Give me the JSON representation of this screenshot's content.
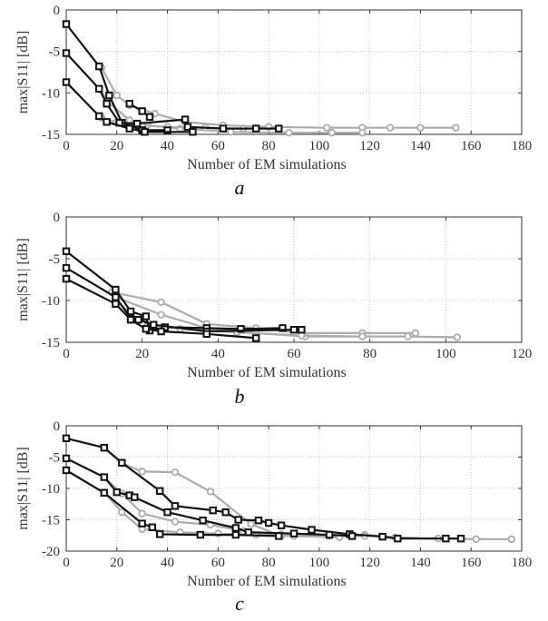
{
  "colors": {
    "black_series": "#111111",
    "gray_series": "#ababab",
    "axis": "#333333",
    "grid": "#c8c8c8"
  },
  "chart_data": [
    {
      "type": "line",
      "panel_label": "a",
      "xlabel": "Number of EM simulations",
      "ylabel": "max|S11| [dB]",
      "xlim": [
        0,
        180
      ],
      "ylim": [
        -15,
        0
      ],
      "xticks": [
        0,
        20,
        40,
        60,
        80,
        100,
        120,
        140,
        160,
        180
      ],
      "yticks": [
        0,
        -5,
        -10,
        -15
      ],
      "grid": true,
      "series": [
        {
          "color": "gray",
          "marker": "circle",
          "points": [
            [
              14,
              -7
            ],
            [
              20,
              -10.3
            ],
            [
              25,
              -11.5
            ],
            [
              35,
              -12.5
            ],
            [
              47,
              -13.5
            ],
            [
              62,
              -13.9
            ],
            [
              80,
              -14.1
            ],
            [
              103,
              -14.2
            ],
            [
              117,
              -14.2
            ],
            [
              128,
              -14.2
            ],
            [
              140,
              -14.2
            ],
            [
              154,
              -14.2
            ]
          ]
        },
        {
          "color": "gray",
          "marker": "circle",
          "points": [
            [
              13,
              -9.5
            ],
            [
              17,
              -11.2
            ],
            [
              25,
              -13.3
            ],
            [
              32,
              -13.9
            ],
            [
              45,
              -14.3
            ],
            [
              65,
              -14.7
            ],
            [
              88,
              -14.8
            ],
            [
              105,
              -14.8
            ],
            [
              117,
              -14.8
            ]
          ]
        },
        {
          "color": "gray",
          "marker": "circle",
          "points": [
            [
              14,
              -13
            ],
            [
              20,
              -13.5
            ],
            [
              30,
              -13.9
            ],
            [
              40,
              -14.1
            ],
            [
              55,
              -14.2
            ],
            [
              70,
              -14.3
            ]
          ]
        },
        {
          "color": "black",
          "marker": "square",
          "points": [
            [
              0,
              -1.7
            ],
            [
              13,
              -6.8
            ],
            [
              17,
              -10.3
            ],
            [
              22,
              -13.6
            ],
            [
              30,
              -14.5
            ],
            [
              40,
              -14.5
            ]
          ]
        },
        {
          "color": "black",
          "marker": "square",
          "points": [
            [
              0,
              -5.2
            ],
            [
              13,
              -9.5
            ],
            [
              16,
              -11.3
            ],
            [
              21,
              -13.6
            ],
            [
              28,
              -13.7
            ],
            [
              47,
              -13.2
            ],
            [
              48,
              -14.1
            ],
            [
              62,
              -14.3
            ],
            [
              75,
              -14.3
            ],
            [
              84,
              -14.3
            ]
          ]
        },
        {
          "color": "black",
          "marker": "square",
          "points": [
            [
              0,
              -8.7
            ],
            [
              13,
              -12.8
            ],
            [
              16,
              -13.5
            ],
            [
              25,
              -14.3
            ],
            [
              31,
              -14.7
            ],
            [
              50,
              -14.7
            ]
          ]
        },
        {
          "color": "black",
          "marker": "square",
          "points": [
            [
              25,
              -11.3
            ],
            [
              30,
              -12.2
            ],
            [
              33,
              -12.9
            ]
          ]
        }
      ]
    },
    {
      "type": "line",
      "panel_label": "b",
      "xlabel": "Number of EM simulations",
      "ylabel": "max|S11| [dB]",
      "xlim": [
        0,
        120
      ],
      "ylim": [
        -15,
        0
      ],
      "xticks": [
        0,
        20,
        40,
        60,
        80,
        100,
        120
      ],
      "yticks": [
        0,
        -5,
        -10,
        -15
      ],
      "grid": true,
      "series": [
        {
          "color": "gray",
          "marker": "circle",
          "points": [
            [
              12,
              -9
            ],
            [
              25,
              -10.2
            ],
            [
              37,
              -12.8
            ],
            [
              50,
              -13.3
            ],
            [
              62,
              -13.9
            ],
            [
              78,
              -13.9
            ],
            [
              92,
              -13.9
            ]
          ]
        },
        {
          "color": "gray",
          "marker": "circle",
          "points": [
            [
              13,
              -9.6
            ],
            [
              25,
              -11.7
            ],
            [
              37,
              -13.3
            ],
            [
              50,
              -13.9
            ],
            [
              63,
              -14.3
            ],
            [
              78,
              -14.3
            ],
            [
              90,
              -14.3
            ],
            [
              103,
              -14.4
            ]
          ]
        },
        {
          "color": "gray",
          "marker": "circle",
          "points": [
            [
              13,
              -10
            ],
            [
              20,
              -12.7
            ],
            [
              30,
              -13.4
            ],
            [
              45,
              -13.8
            ],
            [
              62,
              -14.2
            ],
            [
              78,
              -14.3
            ]
          ]
        },
        {
          "color": "black",
          "marker": "square",
          "points": [
            [
              0,
              -4.1
            ],
            [
              13,
              -8.7
            ],
            [
              17,
              -11.3
            ],
            [
              21,
              -11.9
            ],
            [
              22,
              -13.6
            ],
            [
              26,
              -13.2
            ],
            [
              37,
              -13.3
            ],
            [
              46,
              -13.4
            ],
            [
              57,
              -13.3
            ]
          ]
        },
        {
          "color": "black",
          "marker": "square",
          "points": [
            [
              0,
              -6.1
            ],
            [
              13,
              -9.6
            ],
            [
              17,
              -12.1
            ],
            [
              19,
              -12.3
            ],
            [
              23,
              -12.9
            ],
            [
              37,
              -13.7
            ],
            [
              60,
              -13.5
            ],
            [
              62,
              -13.5
            ]
          ]
        },
        {
          "color": "black",
          "marker": "square",
          "points": [
            [
              0,
              -7.4
            ],
            [
              13,
              -10.4
            ],
            [
              17,
              -12.3
            ],
            [
              21,
              -13.4
            ],
            [
              25,
              -13.7
            ],
            [
              37,
              -14
            ],
            [
              50,
              -14.5
            ]
          ]
        }
      ]
    },
    {
      "type": "line",
      "panel_label": "c",
      "xlabel": "Number of EM simulations",
      "ylabel": "max|S11| [dB]",
      "xlim": [
        0,
        180
      ],
      "ylim": [
        -20,
        0
      ],
      "xticks": [
        0,
        20,
        40,
        60,
        80,
        100,
        120,
        140,
        160,
        180
      ],
      "yticks": [
        0,
        -5,
        -10,
        -15,
        -20
      ],
      "grid": true,
      "series": [
        {
          "color": "gray",
          "marker": "circle",
          "points": [
            [
              15,
              -3.5
            ],
            [
              22,
              -6
            ],
            [
              30,
              -7.3
            ],
            [
              43,
              -7.4
            ],
            [
              57,
              -10.5
            ],
            [
              73,
              -15.7
            ],
            [
              85,
              -17.6
            ],
            [
              104,
              -17.6
            ],
            [
              118,
              -17.4
            ],
            [
              130,
              -17.8
            ],
            [
              147,
              -18
            ],
            [
              162,
              -18.1
            ],
            [
              176,
              -18.1
            ]
          ]
        },
        {
          "color": "gray",
          "marker": "circle",
          "points": [
            [
              15,
              -8.2
            ],
            [
              22,
              -10.8
            ],
            [
              30,
              -14
            ],
            [
              43,
              -15.3
            ],
            [
              57,
              -15.8
            ],
            [
              70,
              -16.8
            ],
            [
              85,
              -17.3
            ],
            [
              104,
              -17.6
            ],
            [
              118,
              -17.6
            ]
          ]
        },
        {
          "color": "gray",
          "marker": "circle",
          "points": [
            [
              15,
              -10.6
            ],
            [
              22,
              -13.8
            ],
            [
              30,
              -16.5
            ],
            [
              45,
              -17
            ],
            [
              60,
              -17.2
            ],
            [
              75,
              -17.4
            ],
            [
              90,
              -17.6
            ],
            [
              108,
              -17.8
            ]
          ]
        },
        {
          "color": "black",
          "marker": "square",
          "points": [
            [
              0,
              -2
            ],
            [
              15,
              -3.5
            ],
            [
              22,
              -5.9
            ],
            [
              37,
              -10.4
            ],
            [
              43,
              -12.8
            ],
            [
              58,
              -13.5
            ],
            [
              63,
              -13.8
            ],
            [
              68,
              -15
            ],
            [
              76,
              -15.1
            ],
            [
              80,
              -15.5
            ],
            [
              85,
              -15.9
            ],
            [
              97,
              -16.6
            ],
            [
              112,
              -17.3
            ],
            [
              125,
              -17.7
            ],
            [
              131,
              -18
            ],
            [
              150,
              -18
            ],
            [
              156,
              -18
            ]
          ]
        },
        {
          "color": "black",
          "marker": "square",
          "points": [
            [
              0,
              -5.2
            ],
            [
              15,
              -8.2
            ],
            [
              20,
              -10.6
            ],
            [
              25,
              -11.1
            ],
            [
              27,
              -11.4
            ],
            [
              40,
              -13.8
            ],
            [
              54,
              -15.1
            ],
            [
              67,
              -16.3
            ],
            [
              72,
              -17
            ],
            [
              90,
              -17.2
            ],
            [
              104,
              -17.4
            ],
            [
              113,
              -17.6
            ]
          ]
        },
        {
          "color": "black",
          "marker": "square",
          "points": [
            [
              0,
              -7.1
            ],
            [
              15,
              -10.7
            ],
            [
              30,
              -15.6
            ],
            [
              34,
              -16.2
            ],
            [
              37,
              -17.3
            ],
            [
              53,
              -17.4
            ],
            [
              67,
              -17.4
            ],
            [
              84,
              -17.6
            ]
          ]
        }
      ]
    }
  ]
}
